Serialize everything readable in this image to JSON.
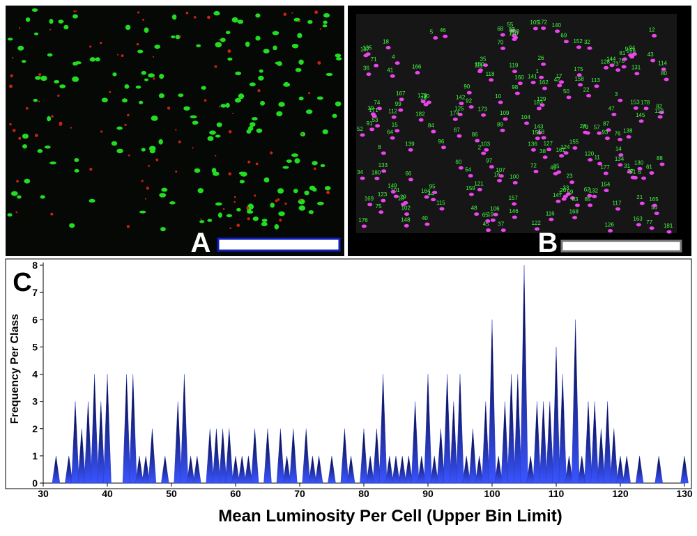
{
  "panels": {
    "a": "A",
    "b": "B",
    "c": "C"
  },
  "cell_labels": [
    1,
    2,
    3,
    4,
    5,
    6,
    7,
    8,
    9,
    10,
    11,
    12,
    13,
    14,
    15,
    16,
    17,
    18,
    19,
    20,
    21,
    22,
    23,
    24,
    25,
    26,
    27,
    28,
    29,
    30,
    31,
    32,
    33,
    34,
    35,
    36,
    37,
    38,
    39,
    40,
    41,
    42,
    43,
    44,
    45,
    46,
    47,
    48,
    49,
    50,
    51,
    52,
    53,
    54,
    55,
    56,
    57,
    58,
    59,
    60,
    61,
    62,
    63,
    64,
    65,
    66,
    67,
    68,
    69,
    70,
    71,
    72,
    73,
    74,
    75,
    76,
    77,
    78,
    79,
    80,
    81,
    82,
    83,
    84,
    85,
    86,
    87,
    88,
    89,
    90,
    91,
    92,
    93,
    94,
    95,
    96,
    97,
    98,
    99,
    100,
    101,
    102,
    103,
    104,
    105,
    106,
    107,
    108,
    109,
    110,
    111,
    112,
    113,
    114,
    115,
    116,
    117,
    118,
    119,
    120,
    121,
    122,
    123,
    124,
    125,
    126,
    127,
    128,
    129,
    130,
    131,
    132,
    133,
    134,
    135,
    136,
    137,
    138,
    139,
    140,
    141,
    142,
    143,
    144,
    145,
    146,
    147,
    148,
    149,
    150,
    151,
    152,
    153,
    154,
    155,
    156,
    157,
    158,
    159,
    160,
    161,
    162,
    163,
    164,
    165,
    166,
    167,
    168,
    169,
    170,
    171,
    172,
    173,
    174,
    175,
    176,
    177,
    178,
    179,
    180,
    181,
    182,
    183
  ],
  "chart_data": {
    "type": "spike",
    "x_label": "Mean Luminosity Per Cell (Upper Bin Limit)",
    "y_label": "Frequency Per Class",
    "x": [
      32,
      34,
      35,
      36,
      37,
      38,
      39,
      40,
      43,
      44,
      45,
      46,
      47,
      49,
      51,
      52,
      53,
      54,
      56,
      57,
      58,
      59,
      60,
      61,
      62,
      63,
      65,
      67,
      68,
      69,
      71,
      72,
      73,
      75,
      77,
      78,
      80,
      81,
      82,
      83,
      84,
      85,
      86,
      87,
      88,
      89,
      90,
      91,
      92,
      93,
      94,
      95,
      96,
      97,
      98,
      99,
      100,
      101,
      102,
      103,
      104,
      105,
      106,
      107,
      108,
      109,
      110,
      111,
      112,
      113,
      114,
      115,
      116,
      117,
      118,
      119,
      120,
      121,
      123,
      126,
      130
    ],
    "values": [
      1,
      1,
      3,
      2,
      3,
      4,
      3,
      4,
      4,
      4,
      1,
      1,
      2,
      1,
      3,
      4,
      1,
      1,
      2,
      2,
      2,
      2,
      1,
      1,
      1,
      2,
      2,
      2,
      1,
      2,
      2,
      1,
      1,
      1,
      2,
      1,
      2,
      1,
      2,
      4,
      1,
      1,
      1,
      1,
      3,
      1,
      4,
      1,
      2,
      4,
      3,
      4,
      1,
      2,
      1,
      3,
      6,
      1,
      3,
      4,
      4,
      8,
      1,
      3,
      3,
      3,
      5,
      4,
      1,
      6,
      1,
      3,
      3,
      2,
      3,
      2,
      1,
      1,
      1,
      1,
      1
    ],
    "color": "#2233cc",
    "xlim": [
      30,
      130
    ],
    "xticks": [
      30,
      40,
      50,
      60,
      70,
      80,
      90,
      100,
      110,
      120,
      130
    ],
    "ylim": [
      0,
      8
    ],
    "yticks": [
      0,
      1,
      2,
      3,
      4,
      5,
      6,
      7,
      8
    ]
  }
}
